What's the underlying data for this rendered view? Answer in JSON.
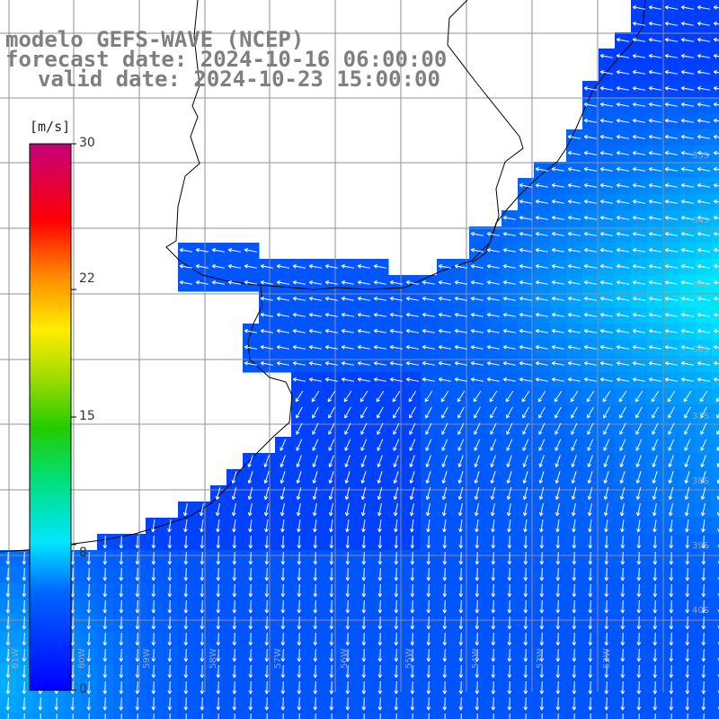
{
  "title": {
    "model": "modelo GEFS-WAVE (NCEP)",
    "forecast": "forecast date: 2024-10-16 06:00:00",
    "valid": "valid date: 2024-10-23 15:00:00"
  },
  "colorbar": {
    "unit": "[m/s]",
    "ticks": [
      {
        "label": "30",
        "value": 30
      },
      {
        "label": "22",
        "value": 22
      },
      {
        "label": "15",
        "value": 15
      },
      {
        "label": "8",
        "value": 8
      },
      {
        "label": "0",
        "value": 0
      }
    ],
    "range": [
      0,
      30
    ]
  },
  "lat_labels": [
    "33S",
    "34S",
    "35S",
    "36S",
    "37S",
    "38S",
    "39S",
    "40S"
  ],
  "lon_labels": [
    "61W",
    "60W",
    "59W",
    "58W",
    "57W",
    "56W",
    "55W",
    "54W",
    "53W",
    "52W"
  ],
  "colors": {
    "grid": "#909090",
    "coast": "#000000",
    "arrow": "#ffffff",
    "title": "#7f7f7f"
  }
}
